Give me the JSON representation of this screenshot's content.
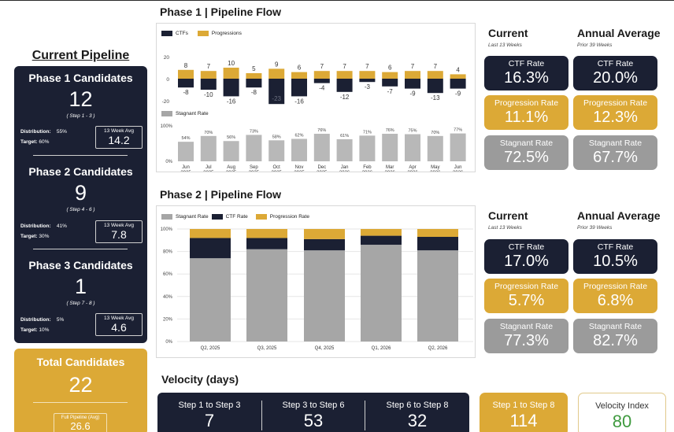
{
  "left": {
    "title": "Current Pipeline",
    "phases": [
      {
        "title": "Phase 1 Candidates",
        "count": "12",
        "steps": "( Step 1 - 3 )",
        "dist_label": "Distribution:",
        "dist_value": "55%",
        "target_label": "Target:",
        "target_value": "60%",
        "avg_label": "13 Week Avg",
        "avg_value": "14.2"
      },
      {
        "title": "Phase 2 Candidates",
        "count": "9",
        "steps": "( Step 4 - 6 )",
        "dist_label": "Distribution:",
        "dist_value": "41%",
        "target_label": "Target:",
        "target_value": "30%",
        "avg_label": "13 Week Avg",
        "avg_value": "7.8"
      },
      {
        "title": "Phase 3 Candidates",
        "count": "1",
        "steps": "( Step 7 - 8 )",
        "dist_label": "Distribution:",
        "dist_value": "5%",
        "target_label": "Target:",
        "target_value": "10%",
        "avg_label": "13 Week Avg",
        "avg_value": "4.6"
      }
    ],
    "total": {
      "title": "Total Candidates",
      "count": "22",
      "fp_label": "Full Pipeline (Avg)",
      "fp_value": "26.6"
    }
  },
  "phase1": {
    "title": "Phase 1 | Pipeline Flow",
    "legend_top": [
      "CTFs",
      "Progressions"
    ],
    "legend_bottom": "Stagnant Rate",
    "current": {
      "head": "Current",
      "sub": "Last 13 Weeks",
      "ctf_label": "CTF Rate",
      "ctf": "16.3%",
      "prog_label": "Progression Rate",
      "prog": "11.1%",
      "stag_label": "Stagnant Rate",
      "stag": "72.5%"
    },
    "annual": {
      "head": "Annual Average",
      "sub": "Prior 39 Weeks",
      "ctf_label": "CTF Rate",
      "ctf": "20.0%",
      "prog_label": "Progression Rate",
      "prog": "12.3%",
      "stag_label": "Stagnant Rate",
      "stag": "67.7%"
    }
  },
  "phase2": {
    "title": "Phase 2 | Pipeline Flow",
    "legend": [
      "Stagnant Rate",
      "CTF Rate",
      "Progression Rate"
    ],
    "current": {
      "head": "Current",
      "sub": "Last 13 Weeks",
      "ctf_label": "CTF Rate",
      "ctf": "17.0%",
      "prog_label": "Progression Rate",
      "prog": "5.7%",
      "stag_label": "Stagnant Rate",
      "stag": "77.3%"
    },
    "annual": {
      "head": "Annual Average",
      "sub": "Prior 39 Weeks",
      "ctf_label": "CTF Rate",
      "ctf": "10.5%",
      "prog_label": "Progression Rate",
      "prog": "6.8%",
      "stag_label": "Stagnant Rate",
      "stag": "82.7%"
    }
  },
  "velocity": {
    "title": "Velocity (days)",
    "items": [
      {
        "label": "Step 1 to Step 3",
        "value": "7"
      },
      {
        "label": "Step 3 to Step 6",
        "value": "53"
      },
      {
        "label": "Step 6 to Step 8",
        "value": "32"
      }
    ],
    "total": {
      "label": "Step 1 to Step 8",
      "value": "114"
    },
    "index": {
      "label": "Velocity Index",
      "value": "80"
    }
  },
  "colors": {
    "navy": "#1b2033",
    "gold": "#dca936",
    "gray": "#a6a6a6"
  },
  "chart_data": [
    {
      "type": "bar",
      "title": "",
      "categories": [
        "Jun\n2025",
        "Jul\n2025",
        "Aug\n2025",
        "Sep\n2025",
        "Oct\n2025",
        "Nov\n2025",
        "Dec\n2025",
        "Jan\n2026",
        "Feb\n2026",
        "Mar\n2026",
        "Apr\n2026",
        "May\n2026",
        "Jun\n2026"
      ],
      "series": [
        {
          "name": "CTFs",
          "values": [
            -8,
            -10,
            -16,
            -8,
            -23,
            -16,
            -4,
            -12,
            -3,
            -7,
            -9,
            -13,
            -9
          ]
        },
        {
          "name": "Progressions",
          "values": [
            8,
            7,
            10,
            5,
            9,
            6,
            7,
            7,
            7,
            6,
            7,
            7,
            4
          ]
        }
      ],
      "yticks": [
        20,
        0,
        -20
      ],
      "ylim": [
        -25,
        25
      ]
    },
    {
      "type": "bar",
      "title": "",
      "categories": [
        "Jun\n2025",
        "Jul\n2025",
        "Aug\n2025",
        "Sep\n2025",
        "Oct\n2025",
        "Nov\n2025",
        "Dec\n2025",
        "Jan\n2026",
        "Feb\n2026",
        "Mar\n2026",
        "Apr\n2026",
        "May\n2026",
        "Jun\n2026"
      ],
      "series": [
        {
          "name": "Stagnant Rate",
          "values": [
            54,
            70,
            56,
            73,
            58,
            62,
            76,
            61,
            71,
            76,
            75,
            70,
            77
          ],
          "labels": [
            "54%",
            "70%",
            "56%",
            "73%",
            "58%",
            "62%",
            "76%",
            "61%",
            "71%",
            "76%",
            "75%",
            "70%",
            "77%"
          ]
        }
      ],
      "yticks": [
        "100%",
        "0%"
      ],
      "ylim": [
        0,
        100
      ]
    },
    {
      "type": "bar",
      "title": "",
      "categories": [
        "Q2, 2025",
        "Q3, 2025",
        "Q4, 2025",
        "Q1, 2026",
        "Q2, 2026"
      ],
      "series": [
        {
          "name": "Stagnant Rate",
          "values": [
            74,
            82,
            81,
            86,
            81
          ]
        },
        {
          "name": "CTF Rate",
          "values": [
            18,
            10,
            10,
            8,
            12
          ]
        },
        {
          "name": "Progression Rate",
          "values": [
            8,
            8,
            9,
            6,
            7
          ]
        }
      ],
      "yticks": [
        "100%",
        "80%",
        "60%",
        "40%",
        "20%",
        "0%"
      ],
      "ylim": [
        0,
        100
      ]
    }
  ]
}
